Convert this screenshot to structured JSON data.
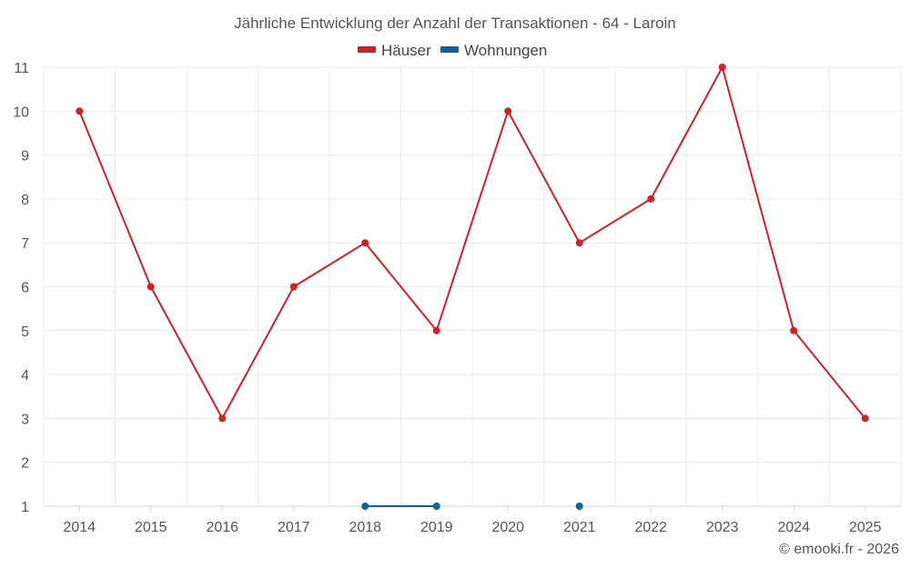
{
  "chart_data": {
    "type": "line",
    "title": "Jährliche Entwicklung der Anzahl der Transaktionen - 64 - Laroin",
    "categories": [
      "2014",
      "2015",
      "2016",
      "2017",
      "2018",
      "2019",
      "2020",
      "2021",
      "2022",
      "2023",
      "2024",
      "2025"
    ],
    "ylim": [
      1,
      11
    ],
    "yticks": [
      1,
      2,
      3,
      4,
      5,
      6,
      7,
      8,
      9,
      10,
      11
    ],
    "grid": true,
    "legend_position": "top-center",
    "series": [
      {
        "name": "Häuser",
        "color": "#d32027",
        "values": [
          10,
          6,
          3,
          6,
          7,
          5,
          10,
          7,
          8,
          11,
          5,
          3
        ]
      },
      {
        "name": "Wohnungen",
        "color": "#0a629e",
        "values": [
          null,
          null,
          null,
          null,
          1,
          1,
          null,
          1,
          null,
          null,
          null,
          null
        ]
      }
    ]
  },
  "credit": "© emooki.fr - 2026"
}
